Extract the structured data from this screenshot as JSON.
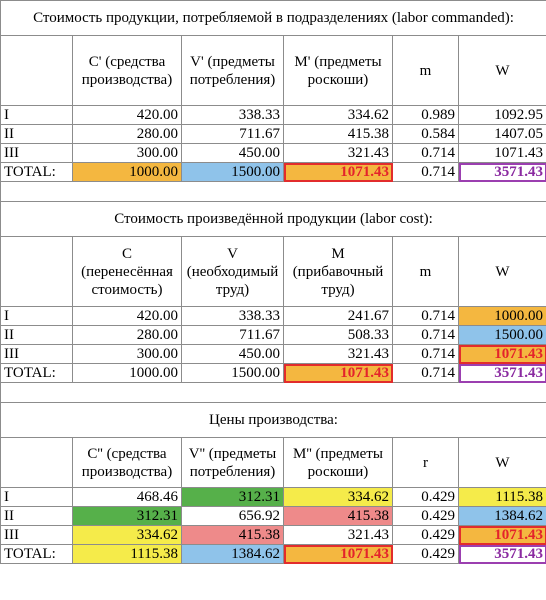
{
  "section1": {
    "title": "Стоимость продукции, потребляемой в подразделениях (labor commanded):",
    "headers": [
      "C' (средства производства)",
      "V' (предметы потребления)",
      "M' (предметы роскоши)",
      "m",
      "W"
    ],
    "rows": [
      [
        "I",
        "420.00",
        "338.33",
        "334.62",
        "0.989",
        "1092.95"
      ],
      [
        "II",
        "280.00",
        "711.67",
        "415.38",
        "0.584",
        "1407.05"
      ],
      [
        "III",
        "300.00",
        "450.00",
        "321.43",
        "0.714",
        "1071.43"
      ],
      [
        "TOTAL:",
        "1000.00",
        "1500.00",
        "1071.43",
        "0.714",
        "3571.43"
      ]
    ]
  },
  "section2": {
    "title": "Стоимость произведённой продукции (labor cost):",
    "headers": [
      "C (перенесённая стоимость)",
      "V (необходимый труд)",
      "M (прибавочный труд)",
      "m",
      "W"
    ],
    "rows": [
      [
        "I",
        "420.00",
        "338.33",
        "241.67",
        "0.714",
        "1000.00"
      ],
      [
        "II",
        "280.00",
        "711.67",
        "508.33",
        "0.714",
        "1500.00"
      ],
      [
        "III",
        "300.00",
        "450.00",
        "321.43",
        "0.714",
        "1071.43"
      ],
      [
        "TOTAL:",
        "1000.00",
        "1500.00",
        "1071.43",
        "0.714",
        "3571.43"
      ]
    ]
  },
  "section3": {
    "title": "Цены производства:",
    "headers": [
      "C'' (средства производства)",
      "V'' (предметы потребления)",
      "M'' (предметы роскоши)",
      "r",
      "W"
    ],
    "rows": [
      [
        "I",
        "468.46",
        "312.31",
        "334.62",
        "0.429",
        "1115.38"
      ],
      [
        "II",
        "312.31",
        "656.92",
        "415.38",
        "0.429",
        "1384.62"
      ],
      [
        "III",
        "334.62",
        "415.38",
        "321.43",
        "0.429",
        "1071.43"
      ],
      [
        "TOTAL:",
        "1115.38",
        "1384.62",
        "1071.43",
        "0.429",
        "3571.43"
      ]
    ]
  },
  "colors": {
    "orange": "#f4b740",
    "blue": "#8fc3ea",
    "yellow": "#f5eb4a",
    "green": "#56b04a",
    "pink": "#ee8a8a",
    "red_outline": "#e22c2c",
    "purple_outline": "#9b3fb0"
  }
}
